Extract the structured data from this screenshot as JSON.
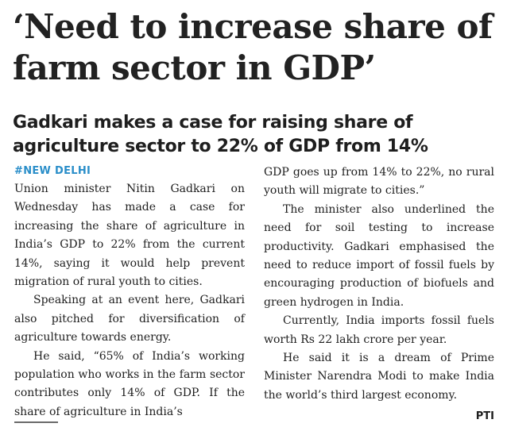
{
  "headline": "‘Need to increase share of farm sector in GDP’",
  "subheadline": "Gadkari makes a case for raising share of agriculture sector to 22% of GDP from 14%",
  "dateline": "#NEW DELHI",
  "col1": {
    "p1": "Union minister Nitin Gadkari on Wednesday has made a case for increasing the share of agriculture in India’s GDP to 22% from the current 14%, saying it would help prevent migration of rural youth to cities.",
    "p2": "Speaking at an event here, Gadkari also pitched for diversification of agriculture towards energy.",
    "p3": "He said, “65% of India’s working population who works in the farm sector contributes only 14% of GDP. If the share of agriculture in India’s"
  },
  "col2": {
    "p1": "GDP goes up from 14% to 22%, no rural youth will migrate to cities.”",
    "p2": "The minister also underlined the need for soil testing to increase productivity. Gadkari emphasised the need to reduce import of fossil fuels by encouraging production of biofuels and green hydrogen in India.",
    "p3": "Currently, India imports fossil fuels worth Rs 22 lakh crore per year.",
    "p4_main": "He said it is a dream of Prime Minister Narendra Modi to make India the world’s third largest economy.",
    "credit": "PTI"
  },
  "colors": {
    "dateline": "#2a8ec9",
    "text": "#1e1e1e"
  }
}
